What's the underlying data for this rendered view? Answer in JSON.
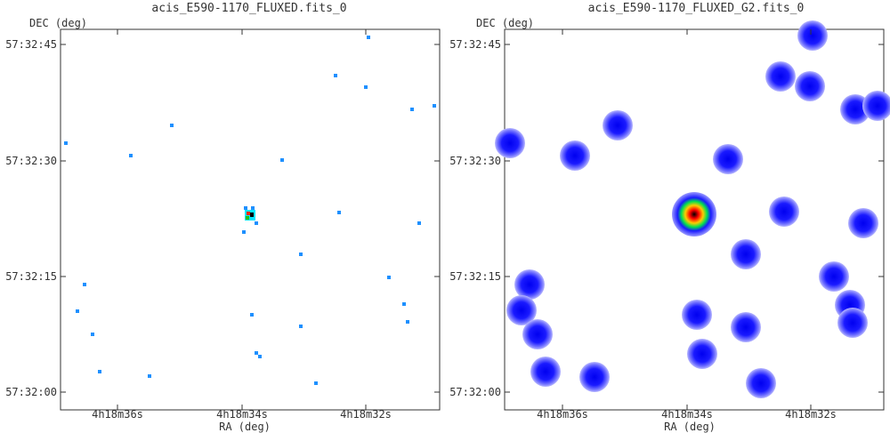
{
  "chart_data": [
    {
      "type": "image",
      "title": "acis_E590-1170_FLUXED.fits_0",
      "xlabel": "RA (deg)",
      "ylabel": "DEC (deg)",
      "xticks": [
        "4h18m36s",
        "4h18m34s",
        "4h18m32s"
      ],
      "yticks": [
        "57:32:45",
        "57:32:30",
        "57:32:15",
        "57:32:00"
      ],
      "colors": {
        "low": "#1e90ff",
        "mid": "#00e5ff",
        "peak": "#000000",
        "hot": "#ff2a00"
      },
      "sources": [
        [
          414,
          42
        ],
        [
          377,
          85
        ],
        [
          411,
          98
        ],
        [
          463,
          123
        ],
        [
          488,
          119
        ],
        [
          193,
          141
        ],
        [
          74,
          161
        ],
        [
          147,
          175
        ],
        [
          317,
          180
        ],
        [
          276,
          234
        ],
        [
          284,
          234
        ],
        [
          381,
          239
        ],
        [
          471,
          251
        ],
        [
          288,
          251
        ],
        [
          274,
          261
        ],
        [
          338,
          286
        ],
        [
          437,
          312
        ],
        [
          95,
          320
        ],
        [
          454,
          342
        ],
        [
          87,
          350
        ],
        [
          283,
          354
        ],
        [
          458,
          362
        ],
        [
          338,
          367
        ],
        [
          104,
          376
        ],
        [
          288,
          397
        ],
        [
          292,
          401
        ],
        [
          112,
          418
        ],
        [
          168,
          423
        ],
        [
          355,
          431
        ]
      ],
      "peak": [
        281,
        242
      ]
    },
    {
      "type": "image",
      "title": "acis_E590-1170_FLUXED_G2.fits_0",
      "xlabel": "RA (deg)",
      "ylabel": "DEC (deg)",
      "xticks": [
        "4h18m36s",
        "4h18m34s",
        "4h18m32s"
      ],
      "yticks": [
        "57:32:45",
        "57:32:30",
        "57:32:15",
        "57:32:00"
      ],
      "colors": {
        "blob": "#1a1aff",
        "edge": "#b8b8ff"
      },
      "blobs": [
        [
          913,
          40
        ],
        [
          877,
          86
        ],
        [
          910,
          97
        ],
        [
          961,
          123
        ],
        [
          986,
          119
        ],
        [
          694,
          141
        ],
        [
          573,
          161
        ],
        [
          646,
          175
        ],
        [
          818,
          179
        ],
        [
          881,
          238
        ],
        [
          970,
          251
        ],
        [
          838,
          286
        ],
        [
          937,
          311
        ],
        [
          595,
          320
        ],
        [
          955,
          343
        ],
        [
          586,
          349
        ],
        [
          783,
          354
        ],
        [
          958,
          363
        ],
        [
          838,
          368
        ],
        [
          604,
          376
        ],
        [
          789,
          398
        ],
        [
          613,
          418
        ],
        [
          668,
          424
        ],
        [
          855,
          431
        ]
      ],
      "peak": [
        780,
        243
      ]
    }
  ]
}
